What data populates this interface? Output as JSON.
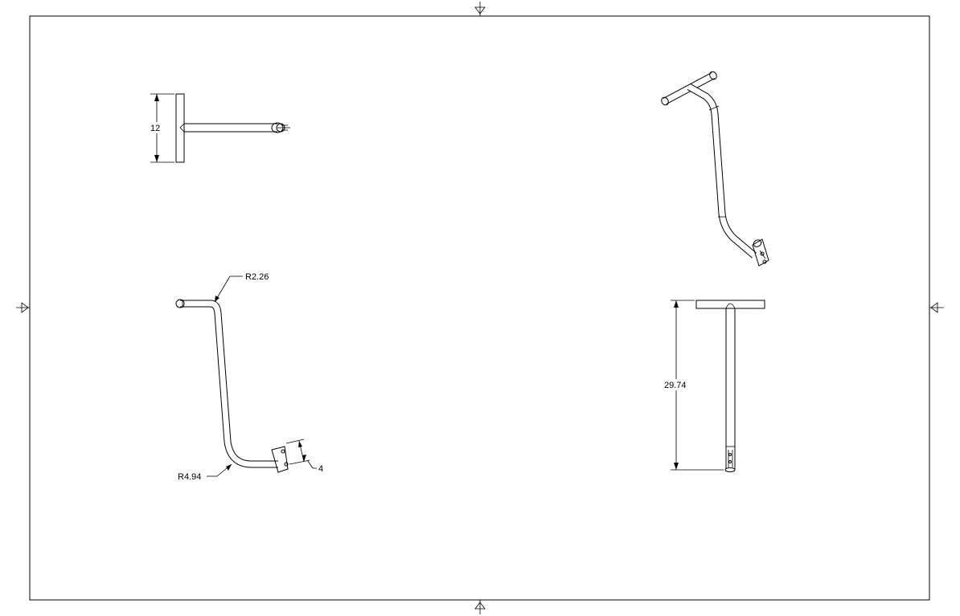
{
  "dimensions": {
    "front_height": "12",
    "bend_radius_upper": "R2.26",
    "bend_radius_lower": "R4.94",
    "end_length": "4",
    "overall_length": "29.74"
  }
}
